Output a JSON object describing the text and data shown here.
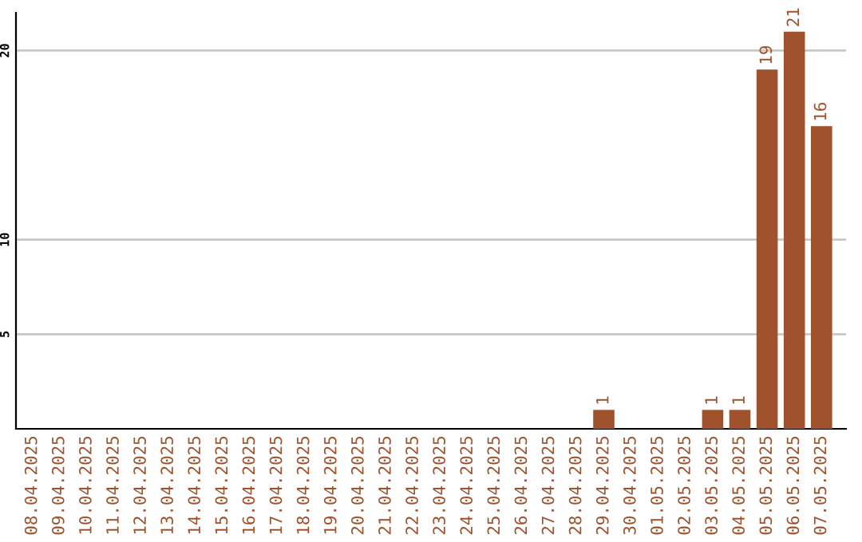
{
  "chart_data": {
    "type": "bar",
    "categories": [
      "08.04.2025",
      "09.04.2025",
      "10.04.2025",
      "11.04.2025",
      "12.04.2025",
      "13.04.2025",
      "14.04.2025",
      "15.04.2025",
      "16.04.2025",
      "17.04.2025",
      "18.04.2025",
      "19.04.2025",
      "20.04.2025",
      "21.04.2025",
      "22.04.2025",
      "23.04.2025",
      "24.04.2025",
      "25.04.2025",
      "26.04.2025",
      "27.04.2025",
      "28.04.2025",
      "29.04.2025",
      "30.04.2025",
      "01.05.2025",
      "02.05.2025",
      "03.05.2025",
      "04.05.2025",
      "05.05.2025",
      "06.05.2025",
      "07.05.2025"
    ],
    "values": [
      0,
      0,
      0,
      0,
      0,
      0,
      0,
      0,
      0,
      0,
      0,
      0,
      0,
      0,
      0,
      0,
      0,
      0,
      0,
      0,
      0,
      1,
      0,
      0,
      0,
      1,
      1,
      19,
      21,
      16
    ],
    "value_labels": [
      null,
      null,
      null,
      null,
      null,
      null,
      null,
      null,
      null,
      null,
      null,
      null,
      null,
      null,
      null,
      null,
      null,
      null,
      null,
      null,
      null,
      "1",
      null,
      null,
      null,
      "1",
      "1",
      "19",
      "21",
      "16"
    ],
    "color": "#a0522d",
    "ylim": [
      0,
      22
    ],
    "yticks": [
      5,
      10,
      20
    ],
    "grid": "y"
  }
}
